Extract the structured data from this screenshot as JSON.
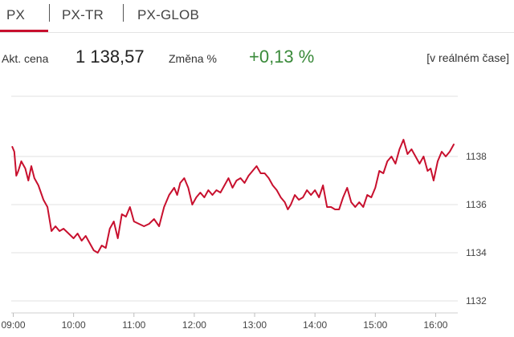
{
  "tabs": [
    {
      "label": "PX",
      "active": true
    },
    {
      "label": "PX-TR",
      "active": false
    },
    {
      "label": "PX-GLOB",
      "active": false
    }
  ],
  "colors": {
    "accent": "#c8102e",
    "line": "#c8102e",
    "positive": "#3a8a3a",
    "grid": "#e2e2e2"
  },
  "quote": {
    "price_label": "Akt. cena",
    "price_value": "1 138,57",
    "change_label": "Změna %",
    "change_value": "+0,13 %",
    "realtime_label": "[v reálném čase]"
  },
  "chart_data": {
    "type": "line",
    "title": "",
    "xlabel": "",
    "ylabel": "",
    "ylim": [
      1131.5,
      1140.5
    ],
    "xlim": [
      "08:58",
      "16:22"
    ],
    "grid": true,
    "y_axis_position": "right",
    "yticks": [
      1138,
      1136,
      1134,
      1132
    ],
    "xticks": [
      "09:00",
      "10:00",
      "11:00",
      "12:00",
      "13:00",
      "14:00",
      "15:00",
      "16:00"
    ],
    "series": [
      {
        "name": "",
        "points": [
          [
            "08:59",
            1138.4
          ],
          [
            "09:01",
            1138.2
          ],
          [
            "09:03",
            1137.2
          ],
          [
            "09:05",
            1137.4
          ],
          [
            "09:08",
            1137.8
          ],
          [
            "09:12",
            1137.5
          ],
          [
            "09:15",
            1137.0
          ],
          [
            "09:18",
            1137.6
          ],
          [
            "09:21",
            1137.1
          ],
          [
            "09:25",
            1136.8
          ],
          [
            "09:30",
            1136.2
          ],
          [
            "09:34",
            1135.9
          ],
          [
            "09:38",
            1134.9
          ],
          [
            "09:42",
            1135.1
          ],
          [
            "09:46",
            1134.9
          ],
          [
            "09:50",
            1135.0
          ],
          [
            "09:55",
            1134.8
          ],
          [
            "10:00",
            1134.6
          ],
          [
            "10:04",
            1134.8
          ],
          [
            "10:08",
            1134.5
          ],
          [
            "10:12",
            1134.7
          ],
          [
            "10:16",
            1134.4
          ],
          [
            "10:20",
            1134.1
          ],
          [
            "10:24",
            1134.0
          ],
          [
            "10:28",
            1134.3
          ],
          [
            "10:32",
            1134.2
          ],
          [
            "10:36",
            1135.0
          ],
          [
            "10:40",
            1135.3
          ],
          [
            "10:44",
            1134.6
          ],
          [
            "10:48",
            1135.6
          ],
          [
            "10:52",
            1135.5
          ],
          [
            "10:56",
            1135.9
          ],
          [
            "11:00",
            1135.3
          ],
          [
            "11:05",
            1135.2
          ],
          [
            "11:10",
            1135.1
          ],
          [
            "11:15",
            1135.2
          ],
          [
            "11:20",
            1135.4
          ],
          [
            "11:25",
            1135.1
          ],
          [
            "11:30",
            1135.9
          ],
          [
            "11:35",
            1136.4
          ],
          [
            "11:40",
            1136.7
          ],
          [
            "11:43",
            1136.4
          ],
          [
            "11:46",
            1136.9
          ],
          [
            "11:50",
            1137.1
          ],
          [
            "11:54",
            1136.7
          ],
          [
            "11:58",
            1136.0
          ],
          [
            "12:02",
            1136.3
          ],
          [
            "12:06",
            1136.5
          ],
          [
            "12:10",
            1136.3
          ],
          [
            "12:14",
            1136.6
          ],
          [
            "12:18",
            1136.4
          ],
          [
            "12:22",
            1136.6
          ],
          [
            "12:26",
            1136.5
          ],
          [
            "12:30",
            1136.8
          ],
          [
            "12:34",
            1137.1
          ],
          [
            "12:38",
            1136.7
          ],
          [
            "12:42",
            1137.0
          ],
          [
            "12:46",
            1137.1
          ],
          [
            "12:50",
            1136.9
          ],
          [
            "12:54",
            1137.2
          ],
          [
            "12:58",
            1137.4
          ],
          [
            "13:02",
            1137.6
          ],
          [
            "13:06",
            1137.3
          ],
          [
            "13:10",
            1137.3
          ],
          [
            "13:14",
            1137.1
          ],
          [
            "13:18",
            1136.8
          ],
          [
            "13:22",
            1136.6
          ],
          [
            "13:26",
            1136.3
          ],
          [
            "13:30",
            1136.1
          ],
          [
            "13:33",
            1135.8
          ],
          [
            "13:36",
            1136.0
          ],
          [
            "13:40",
            1136.4
          ],
          [
            "13:44",
            1136.2
          ],
          [
            "13:48",
            1136.3
          ],
          [
            "13:52",
            1136.6
          ],
          [
            "13:56",
            1136.4
          ],
          [
            "14:00",
            1136.6
          ],
          [
            "14:04",
            1136.3
          ],
          [
            "14:08",
            1136.8
          ],
          [
            "14:12",
            1135.9
          ],
          [
            "14:16",
            1135.9
          ],
          [
            "14:20",
            1135.8
          ],
          [
            "14:24",
            1135.8
          ],
          [
            "14:28",
            1136.3
          ],
          [
            "14:32",
            1136.7
          ],
          [
            "14:36",
            1136.1
          ],
          [
            "14:40",
            1135.9
          ],
          [
            "14:44",
            1136.1
          ],
          [
            "14:48",
            1135.9
          ],
          [
            "14:52",
            1136.4
          ],
          [
            "14:56",
            1136.3
          ],
          [
            "15:00",
            1136.7
          ],
          [
            "15:04",
            1137.4
          ],
          [
            "15:08",
            1137.3
          ],
          [
            "15:12",
            1137.8
          ],
          [
            "15:16",
            1138.0
          ],
          [
            "15:20",
            1137.7
          ],
          [
            "15:24",
            1138.3
          ],
          [
            "15:28",
            1138.7
          ],
          [
            "15:32",
            1138.1
          ],
          [
            "15:36",
            1138.3
          ],
          [
            "15:40",
            1138.0
          ],
          [
            "15:44",
            1137.7
          ],
          [
            "15:48",
            1138.0
          ],
          [
            "15:52",
            1137.4
          ],
          [
            "15:55",
            1137.5
          ],
          [
            "15:58",
            1137.0
          ],
          [
            "16:02",
            1137.8
          ],
          [
            "16:06",
            1138.2
          ],
          [
            "16:10",
            1138.0
          ],
          [
            "16:14",
            1138.2
          ],
          [
            "16:18",
            1138.5
          ]
        ]
      }
    ]
  }
}
